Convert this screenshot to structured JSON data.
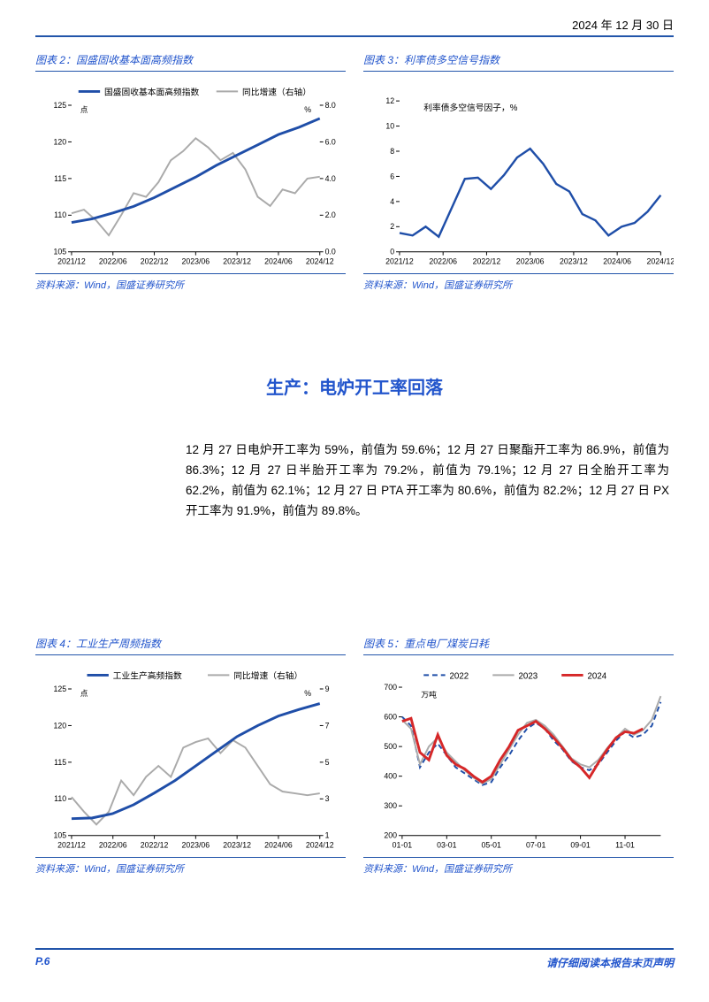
{
  "header": {
    "date": "2024 年 12 月 30 日"
  },
  "footer": {
    "page": "P.6",
    "disclaimer": "请仔细阅读本报告末页声明"
  },
  "section_heading": "生产：电炉开工率回落",
  "body_text": "12 月 27 日电炉开工率为 59%，前值为 59.6%；12 月 27 日聚酯开工率为 86.9%，前值为 86.3%；12 月 27 日半胎开工率为 79.2%，前值为 79.1%；12 月 27 日全胎开工率为 62.2%，前值为 62.1%；12 月 27 日 PTA 开工率为 80.6%，前值为 82.2%；12 月 27 日 PX 开工率为 91.9%，前值为 89.8%。",
  "chart2": {
    "type": "line-dual-axis",
    "title_prefix": "图表 2：",
    "title": "国盛固收基本面高频指数",
    "source": "资料来源：Wind，国盛证券研究所",
    "legend": [
      {
        "label": "国盛固收基本面高频指数",
        "color": "#1f4ea8",
        "width": 3
      },
      {
        "label": "同比增速（右轴）",
        "color": "#aaaaaa",
        "width": 2
      }
    ],
    "y_left": {
      "unit": "点",
      "min": 105,
      "max": 125,
      "step": 5
    },
    "y_right": {
      "unit": "%",
      "min": 0,
      "max": 8,
      "step": 2
    },
    "x_labels": [
      "2021/12",
      "2022/06",
      "2022/12",
      "2023/06",
      "2023/12",
      "2024/06",
      "2024/12"
    ],
    "series_index": {
      "x": [
        0,
        0.5,
        1,
        1.5,
        2,
        2.5,
        3,
        3.5,
        4,
        4.5,
        5,
        5.5,
        6
      ],
      "y": [
        109,
        109.5,
        110.3,
        111.2,
        112.4,
        113.8,
        115.2,
        116.8,
        118.2,
        119.6,
        121,
        122,
        123.2
      ]
    },
    "series_growth": {
      "x": [
        0,
        0.3,
        0.6,
        0.9,
        1.2,
        1.5,
        1.8,
        2.1,
        2.4,
        2.7,
        3.0,
        3.3,
        3.6,
        3.9,
        4.2,
        4.5,
        4.8,
        5.1,
        5.4,
        5.7,
        6
      ],
      "y": [
        2.1,
        2.3,
        1.7,
        0.9,
        2.0,
        3.2,
        3.0,
        3.8,
        5.0,
        5.5,
        6.2,
        5.7,
        5.0,
        5.4,
        4.5,
        3.0,
        2.5,
        3.4,
        3.2,
        4.0,
        4.1
      ]
    },
    "colors": {
      "index": "#1f4ea8",
      "growth": "#aaaaaa",
      "axis": "#000000"
    }
  },
  "chart3": {
    "type": "line",
    "title_prefix": "图表 3：",
    "title": "利率债多空信号指数",
    "source": "资料来源：Wind，国盛证券研究所",
    "series_label": "利率债多空信号因子，%",
    "y": {
      "min": 0,
      "max": 12,
      "step": 2
    },
    "x_labels": [
      "2021/12",
      "2022/06",
      "2022/12",
      "2023/06",
      "2023/12",
      "2024/06",
      "2024/12"
    ],
    "series": {
      "x": [
        0,
        0.3,
        0.6,
        0.9,
        1.2,
        1.5,
        1.8,
        2.1,
        2.4,
        2.7,
        3.0,
        3.3,
        3.6,
        3.9,
        4.2,
        4.5,
        4.8,
        5.1,
        5.4,
        5.7,
        6
      ],
      "y": [
        1.5,
        1.3,
        2.0,
        1.2,
        3.5,
        5.8,
        5.9,
        5.0,
        6.1,
        7.5,
        8.2,
        7.0,
        5.4,
        4.8,
        3.0,
        2.5,
        1.3,
        2.0,
        2.3,
        3.2,
        4.5
      ]
    },
    "color": "#1f4ea8"
  },
  "chart4": {
    "type": "line-dual-axis",
    "title_prefix": "图表 4：",
    "title": "工业生产周频指数",
    "source": "资料来源：Wind，国盛证券研究所",
    "legend": [
      {
        "label": "工业生产高频指数",
        "color": "#1f4ea8",
        "width": 3
      },
      {
        "label": "同比增速（右轴）",
        "color": "#aaaaaa",
        "width": 2
      }
    ],
    "y_left": {
      "unit": "点",
      "min": 105,
      "max": 125,
      "step": 5
    },
    "y_right": {
      "unit": "%",
      "min": 1,
      "max": 9,
      "step": 2
    },
    "x_labels": [
      "2021/12",
      "2022/06",
      "2022/12",
      "2023/06",
      "2023/12",
      "2024/06",
      "2024/12"
    ],
    "series_index": {
      "x": [
        0,
        0.5,
        1,
        1.5,
        2,
        2.5,
        3,
        3.5,
        4,
        4.5,
        5,
        5.5,
        6
      ],
      "y": [
        107.3,
        107.4,
        108.0,
        109.2,
        110.8,
        112.5,
        114.5,
        116.5,
        118.5,
        120.0,
        121.3,
        122.2,
        123.0
      ]
    },
    "series_growth": {
      "x": [
        0,
        0.3,
        0.6,
        0.9,
        1.2,
        1.5,
        1.8,
        2.1,
        2.4,
        2.7,
        3.0,
        3.3,
        3.6,
        3.9,
        4.2,
        4.5,
        4.8,
        5.1,
        5.4,
        5.7,
        6
      ],
      "y": [
        3.1,
        2.3,
        1.6,
        2.3,
        4.0,
        3.2,
        4.2,
        4.8,
        4.2,
        5.8,
        6.1,
        6.3,
        5.5,
        6.2,
        5.8,
        4.8,
        3.8,
        3.4,
        3.3,
        3.2,
        3.3
      ]
    },
    "colors": {
      "index": "#1f4ea8",
      "growth": "#aaaaaa"
    }
  },
  "chart5": {
    "type": "line-multi",
    "title_prefix": "图表 5：",
    "title": "重点电厂煤炭日耗",
    "source": "资料来源：Wind，国盛证券研究所",
    "y": {
      "unit": "万吨",
      "min": 200,
      "max": 700,
      "step": 100
    },
    "x_labels": [
      "01-01",
      "03-01",
      "05-01",
      "07-01",
      "09-01",
      "11-01"
    ],
    "legend": [
      {
        "label": "2022",
        "color": "#1f4ea8",
        "dash": "6,4",
        "width": 2
      },
      {
        "label": "2023",
        "color": "#aaaaaa",
        "dash": "",
        "width": 2
      },
      {
        "label": "2024",
        "color": "#d62728",
        "dash": "",
        "width": 3
      }
    ],
    "series_2022": {
      "x": [
        0,
        0.4,
        0.8,
        1.2,
        1.6,
        2.0,
        2.4,
        2.8,
        3.2,
        3.6,
        4.0,
        4.4,
        4.8,
        5.2,
        5.6,
        6.0,
        6.4,
        6.8,
        7.2,
        7.6,
        8.0,
        8.4,
        8.8,
        9.2,
        9.6,
        10.0,
        10.4,
        10.8,
        11.2,
        11.6
      ],
      "y": [
        600,
        570,
        430,
        480,
        510,
        470,
        430,
        410,
        390,
        370,
        380,
        430,
        470,
        520,
        560,
        580,
        560,
        520,
        490,
        450,
        430,
        420,
        440,
        480,
        520,
        550,
        530,
        540,
        570,
        650
      ]
    },
    "series_2023": {
      "x": [
        0,
        0.4,
        0.8,
        1.2,
        1.6,
        2.0,
        2.4,
        2.8,
        3.2,
        3.6,
        4.0,
        4.4,
        4.8,
        5.2,
        5.6,
        6.0,
        6.4,
        6.8,
        7.2,
        7.6,
        8.0,
        8.4,
        8.8,
        9.2,
        9.6,
        10.0,
        10.4,
        10.8,
        11.2,
        11.6
      ],
      "y": [
        590,
        560,
        440,
        500,
        530,
        480,
        450,
        420,
        395,
        375,
        390,
        440,
        490,
        540,
        580,
        590,
        570,
        540,
        500,
        460,
        440,
        430,
        455,
        495,
        530,
        560,
        540,
        555,
        590,
        670
      ]
    },
    "series_2024": {
      "x": [
        0,
        0.4,
        0.8,
        1.2,
        1.6,
        2.0,
        2.4,
        2.8,
        3.2,
        3.6,
        4.0,
        4.4,
        4.8,
        5.2,
        5.6,
        6.0,
        6.4,
        6.8,
        7.2,
        7.6,
        8.0,
        8.4,
        8.8,
        9.2,
        9.6,
        10.0,
        10.4,
        10.8
      ],
      "y": [
        585,
        595,
        480,
        455,
        540,
        470,
        440,
        425,
        400,
        380,
        400,
        455,
        500,
        555,
        570,
        585,
        560,
        530,
        495,
        455,
        430,
        395,
        445,
        490,
        530,
        550,
        545,
        560
      ]
    }
  }
}
